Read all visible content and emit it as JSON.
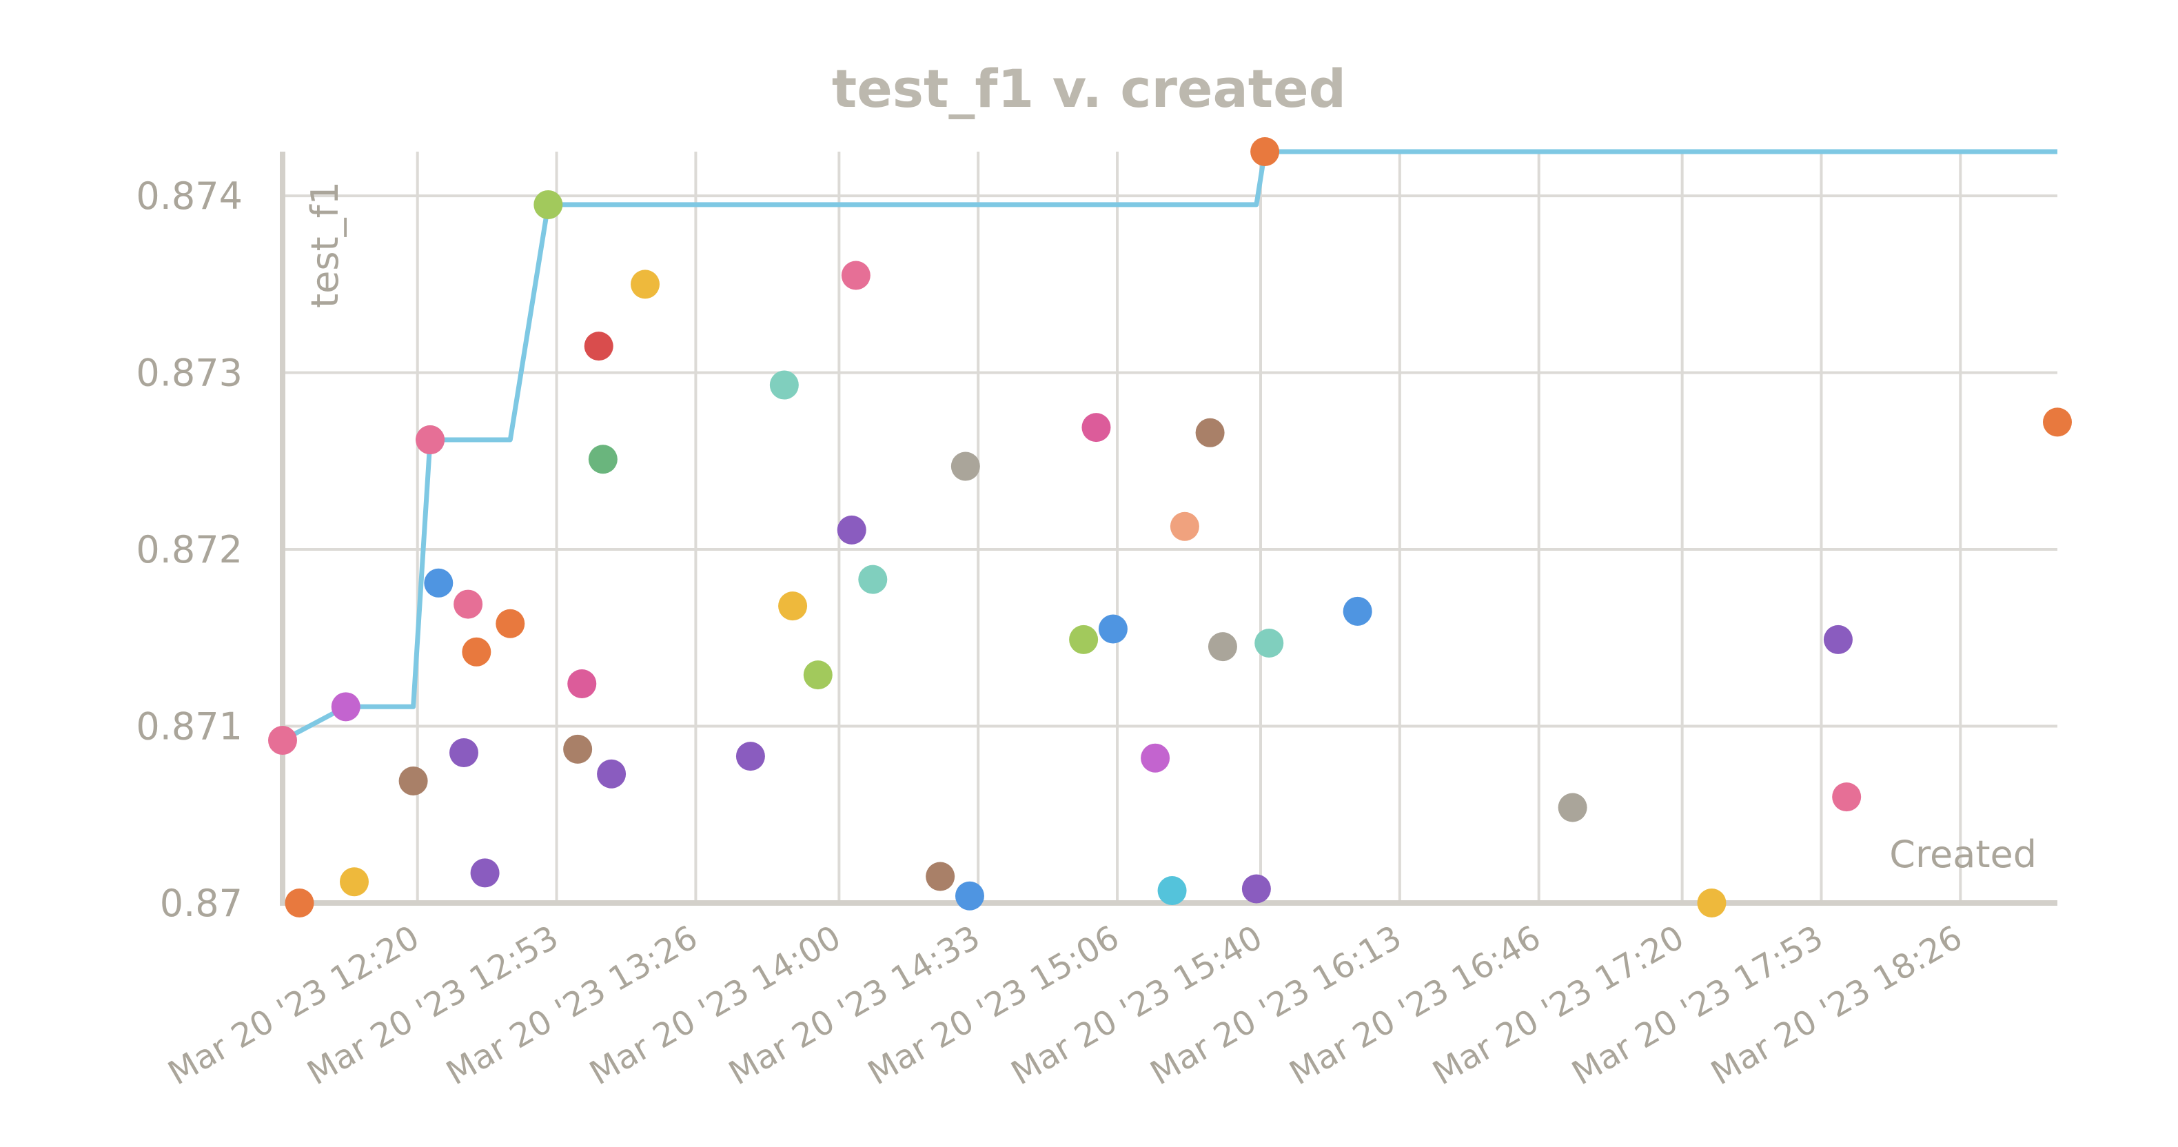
{
  "chart_data": {
    "type": "scatter",
    "title": "test_f1 v. created",
    "xlabel": "Created",
    "ylabel": "test_f1",
    "ylim": [
      0.87,
      0.87425
    ],
    "xlim_minutes": [
      0,
      421
    ],
    "yticks": [
      0.87,
      0.871,
      0.872,
      0.873,
      0.874
    ],
    "ytick_labels": [
      "0.87",
      "0.871",
      "0.872",
      "0.873",
      "0.874"
    ],
    "xticks": [
      {
        "label": "Mar 20 '23 12:20",
        "minutes": 32
      },
      {
        "label": "Mar 20 '23 12:53",
        "minutes": 65
      },
      {
        "label": "Mar 20 '23 13:26",
        "minutes": 98
      },
      {
        "label": "Mar 20 '23 14:00",
        "minutes": 132
      },
      {
        "label": "Mar 20 '23 14:33",
        "minutes": 165
      },
      {
        "label": "Mar 20 '23 15:06",
        "minutes": 198
      },
      {
        "label": "Mar 20 '23 15:40",
        "minutes": 232
      },
      {
        "label": "Mar 20 '23 16:13",
        "minutes": 265
      },
      {
        "label": "Mar 20 '23 16:46",
        "minutes": 298
      },
      {
        "label": "Mar 20 '23 17:20",
        "minutes": 332
      },
      {
        "label": "Mar 20 '23 17:53",
        "minutes": 365
      },
      {
        "label": "Mar 20 '23 18:26",
        "minutes": 398
      }
    ],
    "grid": true,
    "best_line_color": "#7ec8e3",
    "best_line": [
      [
        0,
        0.87092
      ],
      [
        15,
        0.87111
      ],
      [
        31,
        0.87111
      ],
      [
        35,
        0.87262
      ],
      [
        54,
        0.87262
      ],
      [
        63,
        0.87395
      ],
      [
        231,
        0.87395
      ],
      [
        233,
        0.87425
      ],
      [
        421,
        0.87425
      ]
    ],
    "points": [
      {
        "x": 0,
        "y": 0.87092,
        "color": "#e66f96"
      },
      {
        "x": 4,
        "y": 0.87,
        "color": "#e8793e"
      },
      {
        "x": 15,
        "y": 0.87111,
        "color": "#c364cf"
      },
      {
        "x": 17,
        "y": 0.87012,
        "color": "#eeb93c"
      },
      {
        "x": 31,
        "y": 0.87069,
        "color": "#a98068"
      },
      {
        "x": 35,
        "y": 0.87262,
        "color": "#aaa59a"
      },
      {
        "x": 35,
        "y": 0.87262,
        "color": "#e66f96"
      },
      {
        "x": 37,
        "y": 0.87181,
        "color": "#4f95e1"
      },
      {
        "x": 43,
        "y": 0.87085,
        "color": "#8a5cbf"
      },
      {
        "x": 44,
        "y": 0.87169,
        "color": "#e66f96"
      },
      {
        "x": 46,
        "y": 0.87142,
        "color": "#e8793e"
      },
      {
        "x": 48,
        "y": 0.87017,
        "color": "#8a5cbf"
      },
      {
        "x": 54,
        "y": 0.87158,
        "color": "#e8793e"
      },
      {
        "x": 63,
        "y": 0.87395,
        "color": "#a2c95c"
      },
      {
        "x": 70,
        "y": 0.87087,
        "color": "#a98068"
      },
      {
        "x": 71,
        "y": 0.87124,
        "color": "#dc5c9a"
      },
      {
        "x": 75,
        "y": 0.87315,
        "color": "#d94d4d"
      },
      {
        "x": 76,
        "y": 0.87251,
        "color": "#6ab57d"
      },
      {
        "x": 78,
        "y": 0.87073,
        "color": "#8a5cbf"
      },
      {
        "x": 86,
        "y": 0.8735,
        "color": "#eeb93c"
      },
      {
        "x": 111,
        "y": 0.87083,
        "color": "#8a5cbf"
      },
      {
        "x": 119,
        "y": 0.87293,
        "color": "#80cfbe"
      },
      {
        "x": 121,
        "y": 0.87168,
        "color": "#eeb93c"
      },
      {
        "x": 127,
        "y": 0.87129,
        "color": "#a2c95c"
      },
      {
        "x": 135,
        "y": 0.87211,
        "color": "#8a5cbf"
      },
      {
        "x": 136,
        "y": 0.87355,
        "color": "#e66f96"
      },
      {
        "x": 140,
        "y": 0.87183,
        "color": "#80cfbe"
      },
      {
        "x": 156,
        "y": 0.87015,
        "color": "#a98068"
      },
      {
        "x": 162,
        "y": 0.87247,
        "color": "#aaa59a"
      },
      {
        "x": 163,
        "y": 0.87004,
        "color": "#4f95e1"
      },
      {
        "x": 190,
        "y": 0.87149,
        "color": "#a2c95c"
      },
      {
        "x": 193,
        "y": 0.87269,
        "color": "#dc5c9a"
      },
      {
        "x": 197,
        "y": 0.87155,
        "color": "#4f95e1"
      },
      {
        "x": 207,
        "y": 0.87082,
        "color": "#c364cf"
      },
      {
        "x": 211,
        "y": 0.87007,
        "color": "#54c3db"
      },
      {
        "x": 214,
        "y": 0.87213,
        "color": "#f0a27e"
      },
      {
        "x": 220,
        "y": 0.87266,
        "color": "#a98068"
      },
      {
        "x": 223,
        "y": 0.87145,
        "color": "#aaa59a"
      },
      {
        "x": 231,
        "y": 0.87008,
        "color": "#8a5cbf"
      },
      {
        "x": 233,
        "y": 0.87425,
        "color": "#e8793e"
      },
      {
        "x": 234,
        "y": 0.87147,
        "color": "#80cfbe"
      },
      {
        "x": 255,
        "y": 0.87165,
        "color": "#4f95e1"
      },
      {
        "x": 306,
        "y": 0.87054,
        "color": "#aaa59a"
      },
      {
        "x": 339,
        "y": 0.87,
        "color": "#eeb93c"
      },
      {
        "x": 369,
        "y": 0.87149,
        "color": "#8a5cbf"
      },
      {
        "x": 371,
        "y": 0.8706,
        "color": "#e66f96"
      },
      {
        "x": 421,
        "y": 0.87272,
        "color": "#e8793e"
      }
    ]
  }
}
